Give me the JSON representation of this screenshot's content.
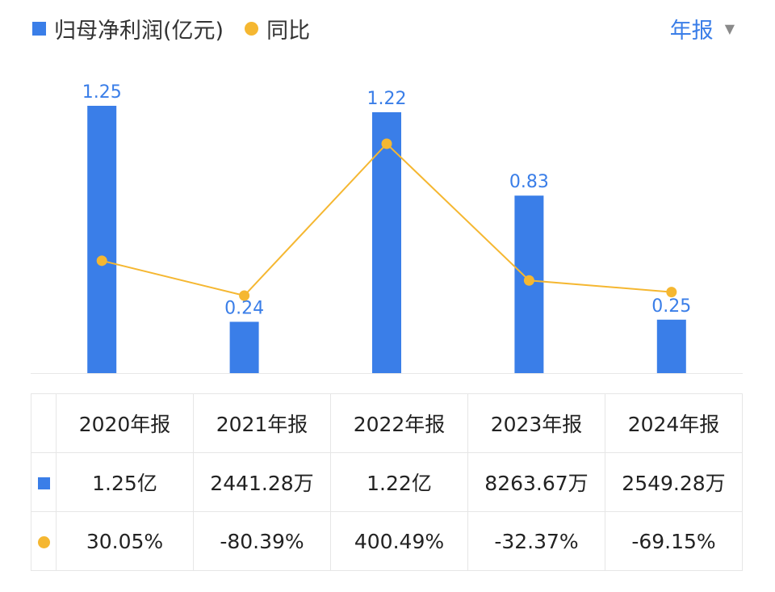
{
  "legend": {
    "bar_label": "归母净利润(亿元)",
    "line_label": "同比"
  },
  "period_selector": {
    "label": "年报",
    "caret": "▼"
  },
  "colors": {
    "bar": "#3a7ee8",
    "line": "#f5b731",
    "positive": "#e0463c",
    "negative": "#2ea86a"
  },
  "chart_data": {
    "type": "bar",
    "categories": [
      "2020年报",
      "2021年报",
      "2022年报",
      "2023年报",
      "2024年报"
    ],
    "series": [
      {
        "name": "归母净利润(亿元)",
        "type": "bar",
        "values": [
          1.25,
          0.24,
          1.22,
          0.83,
          0.25
        ]
      },
      {
        "name": "同比",
        "type": "line",
        "values": [
          30.05,
          -80.39,
          400.49,
          -32.37,
          -69.15
        ]
      }
    ],
    "bar_labels": [
      "1.25",
      "0.24",
      "1.22",
      "0.83",
      "0.25"
    ]
  },
  "table": {
    "headers": [
      "2020年报",
      "2021年报",
      "2022年报",
      "2023年报",
      "2024年报"
    ],
    "profit_row": [
      "1.25亿",
      "2441.28万",
      "1.22亿",
      "8263.67万",
      "2549.28万"
    ],
    "yoy_row": [
      "30.05%",
      "-80.39%",
      "400.49%",
      "-32.37%",
      "-69.15%"
    ]
  }
}
